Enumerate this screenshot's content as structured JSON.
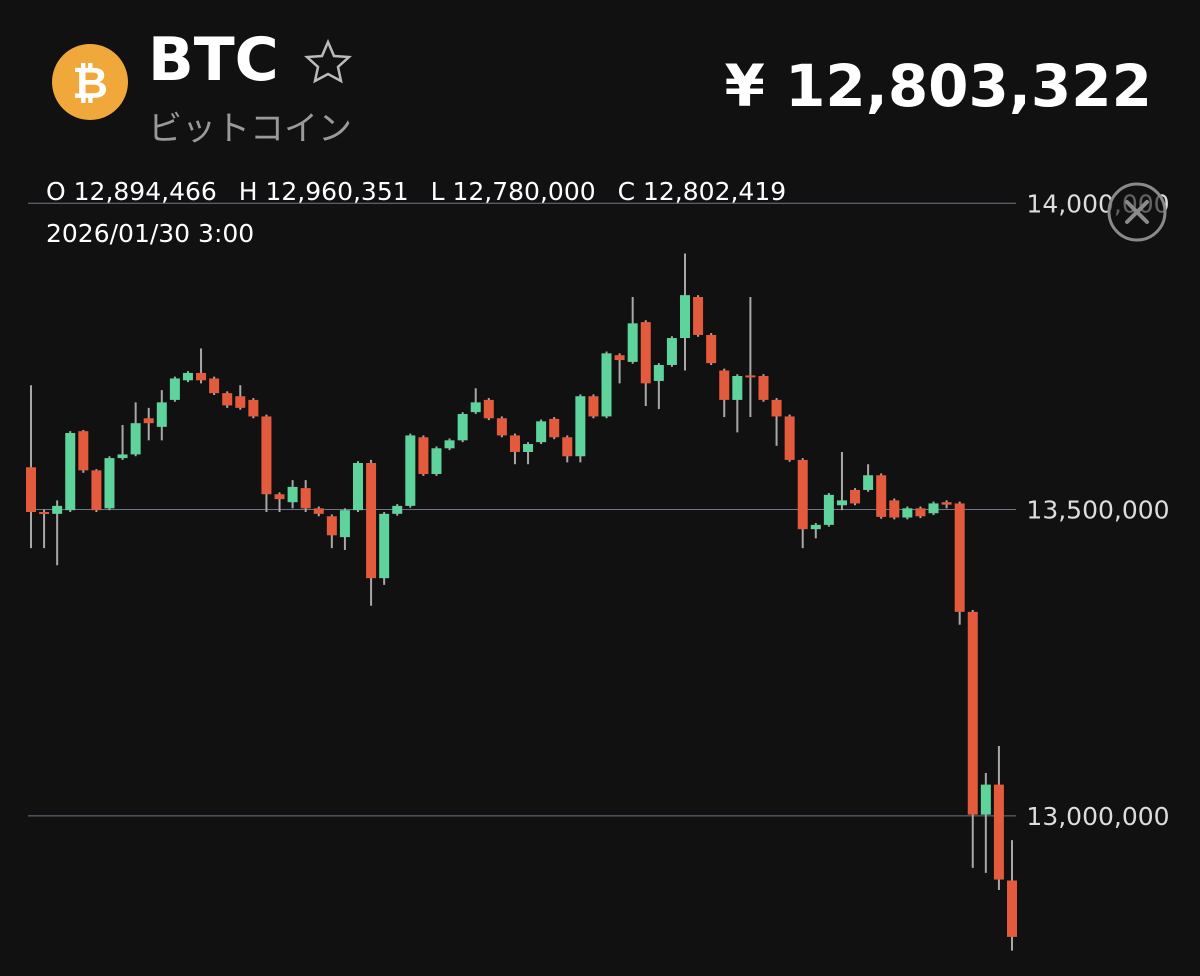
{
  "header": {
    "symbol": "BTC",
    "name": "ビットコイン",
    "price": "¥ 12,803,322",
    "ohlc": [
      {
        "label": "O",
        "value": "12,894,466"
      },
      {
        "label": "H",
        "value": "12,960,351"
      },
      {
        "label": "L",
        "value": "12,780,000"
      },
      {
        "label": "C",
        "value": "12,802,419"
      }
    ],
    "datetime": "2026/01/30 3:00"
  },
  "chart_data": {
    "type": "candlestick",
    "categories": [
      null,
      null,
      null,
      null,
      null,
      null,
      null,
      null,
      null,
      null,
      null,
      null,
      null,
      null,
      null,
      null,
      null,
      null,
      null,
      null,
      null,
      null,
      null,
      null,
      null,
      null,
      null,
      null,
      null,
      null,
      null,
      null,
      null,
      null,
      null,
      null,
      null,
      null,
      null,
      null,
      null,
      null,
      null,
      null,
      null,
      null,
      null,
      null,
      null,
      null,
      null,
      null,
      null,
      null,
      null,
      null,
      null,
      null,
      null,
      null,
      null,
      null,
      null,
      null,
      null,
      null,
      null,
      null,
      null,
      null,
      null,
      null,
      null,
      null,
      null,
      null
    ],
    "open": [
      13569000,
      13496000,
      13493000,
      13499000,
      13628000,
      13564000,
      13502000,
      13584000,
      13590000,
      13649000,
      13635000,
      13679000,
      13711000,
      13723000,
      13714000,
      13690000,
      13685000,
      13679000,
      13652000,
      13525000,
      13512000,
      13535000,
      13502000,
      13489000,
      13455000,
      13499000,
      13576000,
      13388000,
      13493000,
      13506000,
      13618000,
      13558000,
      13600000,
      13613000,
      13659000,
      13679000,
      13649000,
      13621000,
      13594000,
      13610000,
      13648000,
      13618000,
      13587000,
      13685000,
      13652000,
      13752000,
      13741000,
      13806000,
      13710000,
      13736000,
      13780000,
      13847000,
      13785000,
      13727000,
      13679000,
      13719000,
      13718000,
      13679000,
      13652000,
      13581000,
      13468000,
      13475000,
      13507000,
      13532000,
      13532000,
      13556000,
      13515000,
      13487000,
      13502000,
      13494000,
      13512000,
      13510000,
      13333000,
      13002000,
      13051000,
      12894466
    ],
    "high": [
      13703000,
      13500000,
      13515000,
      13628000,
      13630000,
      13566000,
      13587000,
      13638000,
      13675000,
      13666000,
      13695000,
      13717000,
      13726000,
      13763000,
      13717000,
      13693000,
      13703000,
      13682000,
      13655000,
      13528000,
      13548000,
      13548000,
      13505000,
      13492000,
      13502000,
      13579000,
      13581000,
      13496000,
      13509000,
      13624000,
      13621000,
      13603000,
      13616000,
      13659000,
      13698000,
      13682000,
      13652000,
      13624000,
      13610000,
      13647000,
      13651000,
      13621000,
      13688000,
      13688000,
      13758000,
      13755000,
      13847000,
      13809000,
      13739000,
      13783000,
      13918000,
      13850000,
      13788000,
      13730000,
      13721000,
      13847000,
      13721000,
      13682000,
      13655000,
      13584000,
      13478000,
      13527000,
      13594000,
      13535000,
      13574000,
      13559000,
      13518000,
      13505000,
      13505000,
      13513000,
      13515000,
      13513000,
      13336000,
      13070000,
      13114000,
      12960351
    ],
    "low": [
      13437000,
      13437000,
      13409000,
      13496000,
      13560000,
      13496000,
      13499000,
      13581000,
      13587000,
      13613000,
      13613000,
      13676000,
      13708000,
      13706000,
      13687000,
      13666000,
      13663000,
      13649000,
      13496000,
      13496000,
      13502000,
      13496000,
      13489000,
      13437000,
      13434000,
      13496000,
      13343000,
      13377000,
      13490000,
      13503000,
      13555000,
      13555000,
      13597000,
      13610000,
      13656000,
      13646000,
      13618000,
      13574000,
      13574000,
      13607000,
      13615000,
      13577000,
      13577000,
      13649000,
      13649000,
      13706000,
      13738000,
      13669000,
      13664000,
      13733000,
      13727000,
      13782000,
      13736000,
      13651000,
      13626000,
      13651000,
      13676000,
      13604000,
      13578000,
      13437000,
      13453000,
      13472000,
      13499000,
      13507000,
      13529000,
      13485000,
      13484000,
      13484000,
      13486000,
      13491000,
      13502000,
      13312000,
      12915000,
      12907000,
      12879000,
      12780000
    ],
    "close": [
      13496000,
      13493000,
      13506000,
      13625000,
      13564000,
      13499000,
      13584000,
      13590000,
      13641000,
      13641000,
      13675000,
      13714000,
      13723000,
      13711000,
      13690000,
      13670000,
      13666000,
      13652000,
      13525000,
      13517000,
      13537000,
      13502000,
      13493000,
      13458000,
      13499000,
      13576000,
      13388000,
      13493000,
      13506000,
      13621000,
      13558000,
      13600000,
      13613000,
      13656000,
      13675000,
      13649000,
      13621000,
      13594000,
      13607000,
      13644000,
      13618000,
      13587000,
      13685000,
      13652000,
      13755000,
      13744000,
      13804000,
      13706000,
      13736000,
      13780000,
      13850000,
      13785000,
      13739000,
      13679000,
      13718000,
      13718000,
      13679000,
      13652000,
      13581000,
      13468000,
      13475000,
      13524000,
      13515000,
      13510000,
      13556000,
      13488000,
      13487000,
      13502000,
      13489000,
      13510000,
      13508000,
      13333000,
      13002000,
      13051000,
      12896000,
      12802419
    ],
    "up_color": "#5fd39c",
    "down_color": "#e35a3c",
    "wick_color": "#a8a8a8",
    "ylim": [
      12750000,
      14100000
    ],
    "yticks": [
      {
        "value": 13000000,
        "label": "13,000,000"
      },
      {
        "value": 13500000,
        "label": "13,500,000"
      },
      {
        "value": 14000000,
        "label": "14,000,000"
      }
    ],
    "grid": true
  }
}
